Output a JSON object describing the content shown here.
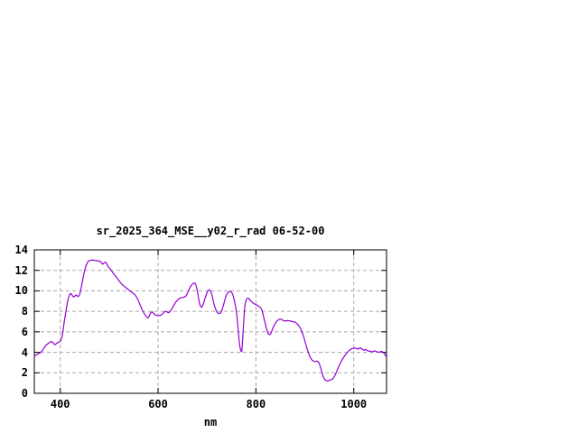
{
  "window": {
    "background_color": "#ffffff",
    "note_blank_area": "upper and right area of canvas is empty white"
  },
  "style": {
    "curve_color": "#9400d3",
    "grid_color": "#a8a8a8",
    "border_color": "#000000",
    "text_color": "#000000"
  },
  "chart_data": {
    "type": "line",
    "title": "sr_2025_364_MSE__y02_r_rad 06-52-00",
    "xlabel": "nm",
    "ylabel": "",
    "xlim": [
      347,
      1067
    ],
    "ylim": [
      0,
      14
    ],
    "x_ticks": [
      400,
      600,
      800,
      1000
    ],
    "y_ticks": [
      0,
      2,
      4,
      6,
      8,
      10,
      12,
      14
    ],
    "grid": true,
    "legend_position": "none",
    "series": [
      {
        "name": "sr_2025_364_MSE__y02_r_rad",
        "color": "#9400d3",
        "points": [
          [
            347,
            3.6
          ],
          [
            351,
            3.75
          ],
          [
            355,
            3.85
          ],
          [
            359,
            3.95
          ],
          [
            363,
            4.15
          ],
          [
            367,
            4.45
          ],
          [
            371,
            4.7
          ],
          [
            375,
            4.85
          ],
          [
            379,
            5.0
          ],
          [
            383,
            5.05
          ],
          [
            386,
            4.9
          ],
          [
            389,
            4.75
          ],
          [
            392,
            4.85
          ],
          [
            395,
            4.95
          ],
          [
            398,
            5.0
          ],
          [
            401,
            5.15
          ],
          [
            404,
            5.6
          ],
          [
            406,
            6.2
          ],
          [
            408,
            6.9
          ],
          [
            410,
            7.5
          ],
          [
            412,
            8.1
          ],
          [
            414,
            8.7
          ],
          [
            416,
            9.2
          ],
          [
            418,
            9.5
          ],
          [
            420,
            9.7
          ],
          [
            422,
            9.75
          ],
          [
            424,
            9.6
          ],
          [
            426,
            9.45
          ],
          [
            428,
            9.4
          ],
          [
            430,
            9.5
          ],
          [
            432,
            9.6
          ],
          [
            434,
            9.55
          ],
          [
            436,
            9.45
          ],
          [
            438,
            9.5
          ],
          [
            440,
            9.7
          ],
          [
            442,
            10.1
          ],
          [
            444,
            10.6
          ],
          [
            446,
            11.1
          ],
          [
            448,
            11.6
          ],
          [
            450,
            12.0
          ],
          [
            452,
            12.35
          ],
          [
            454,
            12.6
          ],
          [
            456,
            12.8
          ],
          [
            458,
            12.9
          ],
          [
            460,
            12.95
          ],
          [
            463,
            13.0
          ],
          [
            466,
            13.0
          ],
          [
            469,
            13.0
          ],
          [
            472,
            12.95
          ],
          [
            475,
            12.95
          ],
          [
            478,
            12.9
          ],
          [
            481,
            12.9
          ],
          [
            484,
            12.75
          ],
          [
            487,
            12.6
          ],
          [
            490,
            12.75
          ],
          [
            493,
            12.8
          ],
          [
            496,
            12.55
          ],
          [
            499,
            12.3
          ],
          [
            502,
            12.15
          ],
          [
            505,
            11.95
          ],
          [
            508,
            11.75
          ],
          [
            512,
            11.5
          ],
          [
            516,
            11.25
          ],
          [
            520,
            11.0
          ],
          [
            524,
            10.75
          ],
          [
            528,
            10.55
          ],
          [
            532,
            10.4
          ],
          [
            536,
            10.25
          ],
          [
            540,
            10.1
          ],
          [
            544,
            9.95
          ],
          [
            548,
            9.8
          ],
          [
            552,
            9.65
          ],
          [
            556,
            9.4
          ],
          [
            560,
            9.0
          ],
          [
            564,
            8.55
          ],
          [
            568,
            8.1
          ],
          [
            572,
            7.75
          ],
          [
            576,
            7.5
          ],
          [
            579,
            7.35
          ],
          [
            582,
            7.55
          ],
          [
            585,
            7.85
          ],
          [
            588,
            7.95
          ],
          [
            591,
            7.8
          ],
          [
            594,
            7.65
          ],
          [
            597,
            7.6
          ],
          [
            600,
            7.58
          ],
          [
            604,
            7.6
          ],
          [
            608,
            7.7
          ],
          [
            612,
            7.9
          ],
          [
            615,
            8.0
          ],
          [
            618,
            7.95
          ],
          [
            621,
            7.85
          ],
          [
            624,
            7.95
          ],
          [
            627,
            8.15
          ],
          [
            630,
            8.4
          ],
          [
            633,
            8.65
          ],
          [
            636,
            8.9
          ],
          [
            639,
            9.05
          ],
          [
            642,
            9.2
          ],
          [
            645,
            9.3
          ],
          [
            648,
            9.33
          ],
          [
            651,
            9.35
          ],
          [
            654,
            9.4
          ],
          [
            657,
            9.5
          ],
          [
            660,
            9.75
          ],
          [
            663,
            10.1
          ],
          [
            666,
            10.4
          ],
          [
            669,
            10.6
          ],
          [
            672,
            10.73
          ],
          [
            675,
            10.75
          ],
          [
            677,
            10.6
          ],
          [
            679,
            10.3
          ],
          [
            681,
            9.8
          ],
          [
            683,
            9.2
          ],
          [
            685,
            8.7
          ],
          [
            687,
            8.45
          ],
          [
            689,
            8.4
          ],
          [
            691,
            8.55
          ],
          [
            693,
            8.8
          ],
          [
            695,
            9.1
          ],
          [
            697,
            9.4
          ],
          [
            699,
            9.7
          ],
          [
            701,
            9.95
          ],
          [
            703,
            10.05
          ],
          [
            705,
            10.1
          ],
          [
            707,
            10.0
          ],
          [
            709,
            9.8
          ],
          [
            711,
            9.4
          ],
          [
            713,
            8.95
          ],
          [
            715,
            8.6
          ],
          [
            717,
            8.3
          ],
          [
            719,
            8.05
          ],
          [
            721,
            7.9
          ],
          [
            723,
            7.82
          ],
          [
            725,
            7.78
          ],
          [
            727,
            7.8
          ],
          [
            729,
            7.95
          ],
          [
            731,
            8.2
          ],
          [
            733,
            8.5
          ],
          [
            735,
            8.85
          ],
          [
            737,
            9.2
          ],
          [
            739,
            9.5
          ],
          [
            741,
            9.7
          ],
          [
            743,
            9.85
          ],
          [
            745,
            9.92
          ],
          [
            747,
            9.95
          ],
          [
            749,
            9.9
          ],
          [
            751,
            9.82
          ],
          [
            753,
            9.6
          ],
          [
            755,
            9.25
          ],
          [
            757,
            8.8
          ],
          [
            759,
            8.3
          ],
          [
            761,
            7.6
          ],
          [
            763,
            6.6
          ],
          [
            765,
            5.5
          ],
          [
            767,
            4.6
          ],
          [
            769,
            4.15
          ],
          [
            771,
            4.05
          ],
          [
            772,
            4.6
          ],
          [
            773,
            5.4
          ],
          [
            774,
            6.2
          ],
          [
            775,
            7.0
          ],
          [
            776,
            7.7
          ],
          [
            777,
            8.3
          ],
          [
            778,
            8.7
          ],
          [
            780,
            9.1
          ],
          [
            782,
            9.25
          ],
          [
            784,
            9.3
          ],
          [
            786,
            9.25
          ],
          [
            788,
            9.1
          ],
          [
            790,
            9.0
          ],
          [
            793,
            8.85
          ],
          [
            796,
            8.75
          ],
          [
            799,
            8.68
          ],
          [
            802,
            8.6
          ],
          [
            805,
            8.5
          ],
          [
            808,
            8.42
          ],
          [
            811,
            8.25
          ],
          [
            813,
            8.0
          ],
          [
            815,
            7.6
          ],
          [
            817,
            7.2
          ],
          [
            819,
            6.8
          ],
          [
            821,
            6.4
          ],
          [
            823,
            6.1
          ],
          [
            825,
            5.85
          ],
          [
            827,
            5.72
          ],
          [
            829,
            5.75
          ],
          [
            831,
            5.9
          ],
          [
            833,
            6.15
          ],
          [
            835,
            6.4
          ],
          [
            838,
            6.7
          ],
          [
            841,
            6.95
          ],
          [
            844,
            7.1
          ],
          [
            847,
            7.2
          ],
          [
            850,
            7.25
          ],
          [
            853,
            7.2
          ],
          [
            856,
            7.1
          ],
          [
            859,
            7.05
          ],
          [
            862,
            7.08
          ],
          [
            865,
            7.1
          ],
          [
            868,
            7.08
          ],
          [
            871,
            7.05
          ],
          [
            874,
            7.0
          ],
          [
            877,
            6.98
          ],
          [
            880,
            6.95
          ],
          [
            883,
            6.85
          ],
          [
            886,
            6.7
          ],
          [
            889,
            6.5
          ],
          [
            892,
            6.25
          ],
          [
            895,
            5.9
          ],
          [
            898,
            5.45
          ],
          [
            901,
            4.95
          ],
          [
            904,
            4.45
          ],
          [
            907,
            4.0
          ],
          [
            910,
            3.6
          ],
          [
            913,
            3.35
          ],
          [
            916,
            3.2
          ],
          [
            919,
            3.12
          ],
          [
            922,
            3.1
          ],
          [
            925,
            3.15
          ],
          [
            928,
            3.05
          ],
          [
            931,
            2.7
          ],
          [
            934,
            2.2
          ],
          [
            937,
            1.7
          ],
          [
            940,
            1.4
          ],
          [
            943,
            1.25
          ],
          [
            946,
            1.2
          ],
          [
            949,
            1.25
          ],
          [
            952,
            1.3
          ],
          [
            955,
            1.35
          ],
          [
            958,
            1.45
          ],
          [
            961,
            1.7
          ],
          [
            964,
            2.0
          ],
          [
            967,
            2.35
          ],
          [
            970,
            2.7
          ],
          [
            973,
            3.0
          ],
          [
            976,
            3.25
          ],
          [
            979,
            3.5
          ],
          [
            982,
            3.7
          ],
          [
            985,
            3.9
          ],
          [
            988,
            4.05
          ],
          [
            991,
            4.2
          ],
          [
            994,
            4.3
          ],
          [
            997,
            4.38
          ],
          [
            1000,
            4.4
          ],
          [
            1003,
            4.42
          ],
          [
            1006,
            4.38
          ],
          [
            1009,
            4.3
          ],
          [
            1012,
            4.45
          ],
          [
            1015,
            4.4
          ],
          [
            1018,
            4.28
          ],
          [
            1021,
            4.2
          ],
          [
            1024,
            4.28
          ],
          [
            1027,
            4.2
          ],
          [
            1030,
            4.1
          ],
          [
            1033,
            4.12
          ],
          [
            1036,
            4.08
          ],
          [
            1039,
            4.05
          ],
          [
            1042,
            4.15
          ],
          [
            1045,
            4.1
          ],
          [
            1048,
            4.05
          ],
          [
            1051,
            4.0
          ],
          [
            1054,
            4.05
          ],
          [
            1057,
            4.1
          ],
          [
            1060,
            4.0
          ],
          [
            1063,
            3.85
          ],
          [
            1066,
            3.6
          ]
        ]
      }
    ]
  }
}
